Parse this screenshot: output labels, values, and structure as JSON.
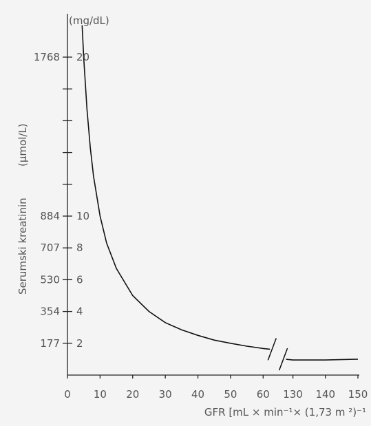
{
  "chart_data": {
    "type": "line",
    "ylabel": "Serumski kreatinin",
    "y_unit_left": "(µmol/L)",
    "y_unit_right": "(mg/dL)",
    "xlabel": "GFR [mL × min⁻¹× (1,73 m ²)⁻¹",
    "x_ticks": [
      {
        "value": 0,
        "label": "0"
      },
      {
        "value": 10,
        "label": "10"
      },
      {
        "value": 20,
        "label": "20"
      },
      {
        "value": 30,
        "label": "30"
      },
      {
        "value": 40,
        "label": "40"
      },
      {
        "value": 50,
        "label": "50"
      },
      {
        "value": 60,
        "label": "60"
      },
      {
        "value": 130,
        "label": "130"
      },
      {
        "value": 140,
        "label": "140"
      },
      {
        "value": 150,
        "label": "150"
      }
    ],
    "x_break": [
      60,
      130
    ],
    "y_ticks": [
      {
        "mgdl": 2,
        "umol": "177",
        "label": "2"
      },
      {
        "mgdl": 4,
        "umol": "354",
        "label": "4"
      },
      {
        "mgdl": 6,
        "umol": "530",
        "label": "6"
      },
      {
        "mgdl": 8,
        "umol": "707",
        "label": "8"
      },
      {
        "mgdl": 10,
        "umol": "884",
        "label": "10"
      },
      {
        "mgdl": 12,
        "umol": "",
        "label": ""
      },
      {
        "mgdl": 14,
        "umol": "",
        "label": ""
      },
      {
        "mgdl": 16,
        "umol": "",
        "label": ""
      },
      {
        "mgdl": 18,
        "umol": "",
        "label": ""
      },
      {
        "mgdl": 20,
        "umol": "1768",
        "label": "20"
      }
    ],
    "ylim": [
      0,
      22
    ],
    "series": [
      {
        "points": [
          [
            4.5,
            22.0
          ],
          [
            5,
            19.9
          ],
          [
            6,
            16.7
          ],
          [
            7,
            14.3
          ],
          [
            8,
            12.5
          ],
          [
            10,
            10.0
          ],
          [
            12,
            8.3
          ],
          [
            15,
            6.7
          ],
          [
            20,
            5.0
          ],
          [
            25,
            4.0
          ],
          [
            30,
            3.3
          ],
          [
            35,
            2.85
          ],
          [
            40,
            2.5
          ],
          [
            45,
            2.2
          ],
          [
            50,
            2.0
          ],
          [
            55,
            1.82
          ],
          [
            60,
            1.67
          ],
          [
            130,
            0.95
          ],
          [
            140,
            0.95
          ],
          [
            150,
            1.0
          ]
        ]
      }
    ]
  }
}
